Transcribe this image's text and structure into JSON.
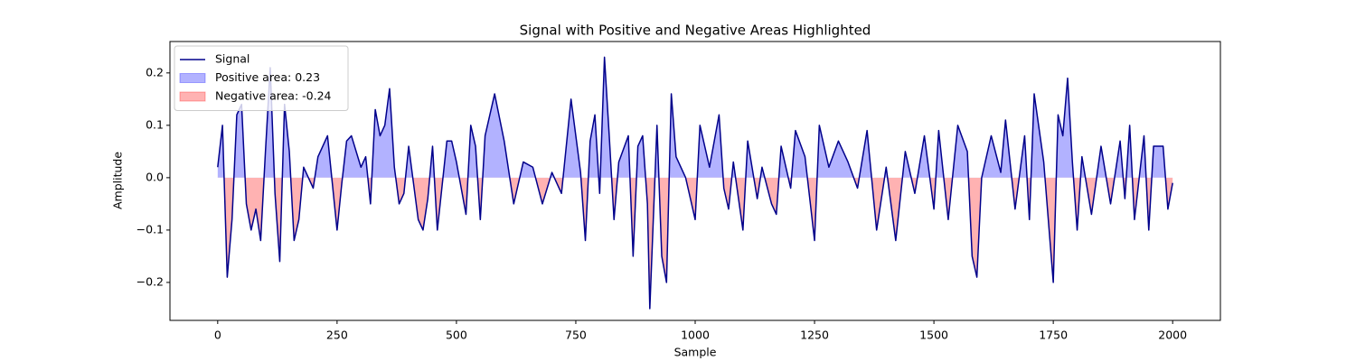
{
  "chart_data": {
    "type": "line",
    "title": "Signal with Positive and Negative Areas Highlighted",
    "xlabel": "Sample",
    "ylabel": "Amplitude",
    "x": [
      0,
      10,
      20,
      30,
      40,
      50,
      60,
      70,
      80,
      90,
      100,
      110,
      120,
      130,
      140,
      150,
      160,
      170,
      180,
      200,
      210,
      220,
      230,
      250,
      260,
      270,
      280,
      300,
      310,
      320,
      330,
      340,
      350,
      360,
      370,
      380,
      390,
      400,
      420,
      430,
      440,
      450,
      460,
      480,
      490,
      500,
      520,
      530,
      540,
      550,
      560,
      580,
      600,
      620,
      640,
      660,
      680,
      700,
      720,
      740,
      760,
      770,
      780,
      790,
      800,
      810,
      820,
      830,
      840,
      860,
      870,
      880,
      890,
      900,
      905,
      920,
      930,
      940,
      950,
      960,
      980,
      1000,
      1010,
      1030,
      1050,
      1060,
      1070,
      1080,
      1100,
      1110,
      1130,
      1140,
      1160,
      1170,
      1180,
      1200,
      1210,
      1230,
      1250,
      1260,
      1280,
      1300,
      1320,
      1340,
      1360,
      1380,
      1400,
      1420,
      1440,
      1460,
      1480,
      1500,
      1510,
      1530,
      1550,
      1570,
      1580,
      1590,
      1600,
      1620,
      1640,
      1650,
      1670,
      1690,
      1700,
      1710,
      1730,
      1750,
      1760,
      1770,
      1780,
      1790,
      1800,
      1810,
      1830,
      1850,
      1870,
      1890,
      1900,
      1910,
      1920,
      1940,
      1950,
      1960,
      1980,
      1990,
      2000
    ],
    "series": [
      {
        "name": "Signal",
        "color": "#00008b",
        "values": [
          0.02,
          0.1,
          -0.19,
          -0.08,
          0.12,
          0.14,
          -0.05,
          -0.1,
          -0.06,
          -0.12,
          0.05,
          0.21,
          -0.03,
          -0.16,
          0.14,
          0.05,
          -0.12,
          -0.08,
          0.02,
          -0.02,
          0.04,
          0.06,
          0.08,
          -0.1,
          -0.01,
          0.07,
          0.08,
          0.02,
          0.04,
          -0.05,
          0.13,
          0.08,
          0.1,
          0.17,
          0.02,
          -0.05,
          -0.03,
          0.06,
          -0.08,
          -0.1,
          -0.04,
          0.06,
          -0.1,
          0.07,
          0.07,
          0.03,
          -0.07,
          0.1,
          0.06,
          -0.08,
          0.08,
          0.16,
          0.07,
          -0.05,
          0.03,
          0.02,
          -0.05,
          0.01,
          -0.03,
          0.15,
          0.01,
          -0.12,
          0.07,
          0.12,
          -0.03,
          0.23,
          0.08,
          -0.08,
          0.03,
          0.08,
          -0.15,
          0.06,
          0.08,
          -0.05,
          -0.25,
          0.1,
          -0.15,
          -0.2,
          0.16,
          0.04,
          0.0,
          -0.08,
          0.1,
          0.02,
          0.12,
          -0.02,
          -0.06,
          0.03,
          -0.1,
          0.07,
          -0.04,
          0.02,
          -0.05,
          -0.07,
          0.06,
          -0.02,
          0.09,
          0.04,
          -0.12,
          0.1,
          0.02,
          0.07,
          0.03,
          -0.02,
          0.09,
          -0.1,
          0.02,
          -0.12,
          0.05,
          -0.03,
          0.08,
          -0.06,
          0.09,
          -0.08,
          0.1,
          0.05,
          -0.15,
          -0.19,
          0.0,
          0.08,
          0.01,
          0.11,
          -0.06,
          0.08,
          -0.08,
          0.16,
          0.03,
          -0.2,
          0.12,
          0.08,
          0.19,
          0.03,
          -0.1,
          0.04,
          -0.07,
          0.06,
          -0.05,
          0.07,
          -0.04,
          0.1,
          -0.08,
          0.08,
          -0.1,
          0.06,
          0.06,
          -0.06,
          -0.01
        ]
      }
    ],
    "fills": [
      {
        "name": "Positive area: 0.23",
        "color": "#0000ff",
        "side": "positive"
      },
      {
        "name": "Negative area: -0.24",
        "color": "#ff0000",
        "side": "negative"
      }
    ],
    "xlim": [
      -100,
      2100
    ],
    "xticks": [
      0,
      250,
      500,
      750,
      1000,
      1250,
      1500,
      1750,
      2000
    ],
    "ylim": [
      -0.2725,
      0.26
    ],
    "yticks": [
      {
        "value": -0.2,
        "label": "−0.2"
      },
      {
        "value": -0.1,
        "label": "−0.1"
      },
      {
        "value": 0,
        "label": "0.0"
      },
      {
        "value": 0.1,
        "label": "0.1"
      },
      {
        "value": 0.2,
        "label": "0.2"
      }
    ],
    "legend": "upper left"
  }
}
